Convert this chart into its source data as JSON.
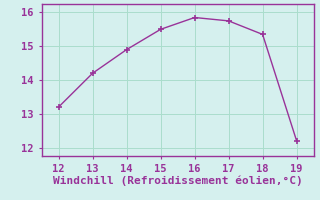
{
  "x": [
    12,
    13,
    14,
    15,
    16,
    17,
    18,
    19
  ],
  "y": [
    13.2,
    14.2,
    14.9,
    15.5,
    15.85,
    15.75,
    15.35,
    12.2
  ],
  "line_color": "#993399",
  "marker": "+",
  "marker_size": 4,
  "marker_linewidth": 1.2,
  "linewidth": 1.0,
  "xlabel": "Windchill (Refroidissement éolien,°C)",
  "xlabel_color": "#993399",
  "bg_color": "#d5f0ee",
  "grid_color": "#aaddcc",
  "tick_color": "#993399",
  "xlim": [
    11.5,
    19.5
  ],
  "ylim": [
    11.75,
    16.25
  ],
  "xticks": [
    12,
    13,
    14,
    15,
    16,
    17,
    18,
    19
  ],
  "yticks": [
    12,
    13,
    14,
    15,
    16
  ],
  "spine_color": "#993399",
  "tick_fontsize": 7.5,
  "xlabel_fontsize": 8
}
